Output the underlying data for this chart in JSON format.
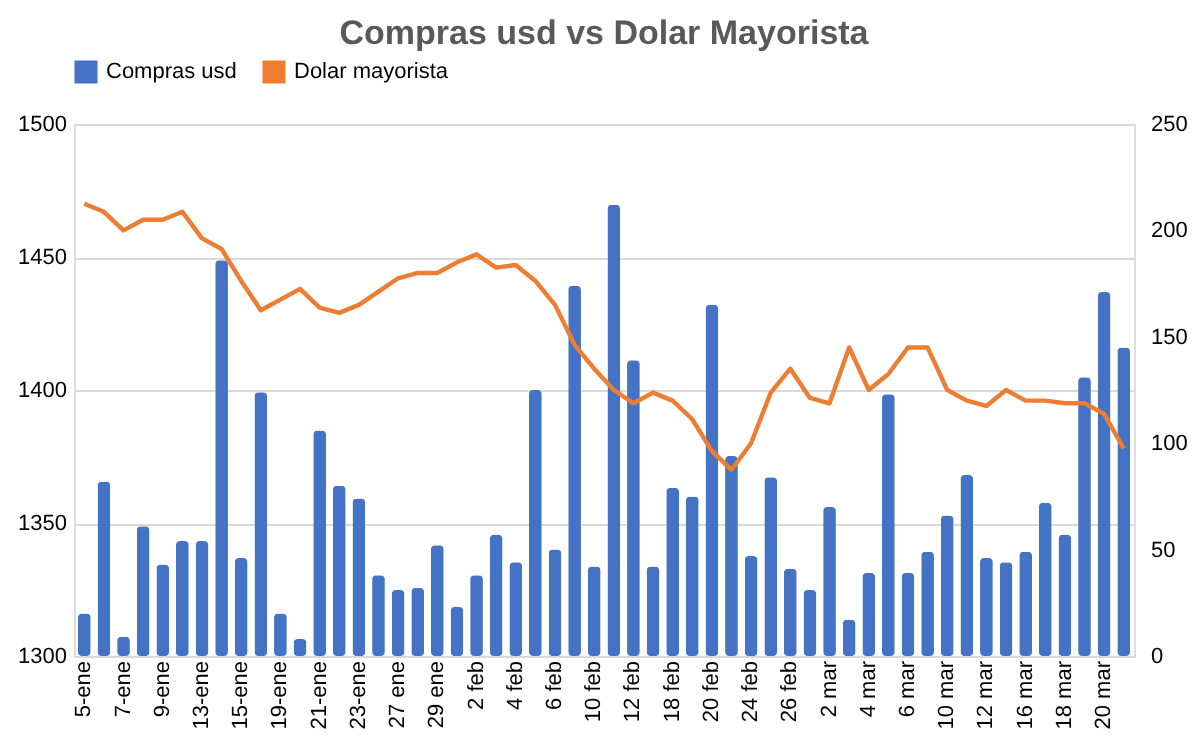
{
  "chart_data": {
    "type": "bar",
    "title": "Compras usd vs Dolar Mayorista",
    "categories": [
      "5-ene",
      null,
      "7-ene",
      null,
      "9-ene",
      null,
      "13-ene",
      null,
      "15-ene",
      null,
      "19-ene",
      null,
      "21-ene",
      null,
      "23-ene",
      null,
      "27 ene",
      null,
      "29 ene",
      null,
      "2 feb",
      null,
      "4 feb",
      null,
      "6 feb",
      null,
      "10 feb",
      null,
      "12 feb",
      null,
      "18 feb",
      null,
      "20 feb",
      null,
      "24 feb",
      null,
      "26 feb",
      null,
      "2 mar",
      null,
      "4 mar",
      null,
      "6 mar",
      null,
      "10 mar",
      null,
      "12 mar",
      null,
      "16 mar",
      null,
      "18 mar",
      null,
      "20 mar",
      null
    ],
    "series": [
      {
        "name": "Compras usd",
        "axis": "y2",
        "color": "#4472c4",
        "values": [
          20,
          82,
          9,
          61,
          43,
          54,
          54,
          186,
          46,
          124,
          20,
          8,
          106,
          80,
          74,
          38,
          31,
          32,
          52,
          23,
          38,
          57,
          44,
          125,
          50,
          174,
          42,
          212,
          139,
          42,
          79,
          75,
          165,
          94,
          47,
          84,
          41,
          31,
          70,
          17,
          39,
          123,
          39,
          49,
          66,
          85,
          46,
          44,
          49,
          72,
          57,
          131,
          171,
          145
        ]
      },
      {
        "name": "Dolar mayorista",
        "type": "line",
        "color": "#ed7d31",
        "values": [
          1470,
          1467,
          1460,
          1464,
          1464,
          1467,
          1457,
          1453,
          1441,
          1430,
          1434,
          1438,
          1431,
          1429,
          1432,
          1437,
          1442,
          1444,
          1444,
          1448,
          1451,
          1446,
          1447,
          1441,
          1432,
          1417,
          1408,
          1400,
          1395,
          1399,
          1396,
          1389,
          1377,
          1370,
          1380,
          1399,
          1408,
          1397,
          1395,
          1416,
          1400,
          1406,
          1416,
          1416,
          1400,
          1396,
          1394,
          1400,
          1396,
          1396,
          1395,
          1395,
          1391,
          1378
        ]
      }
    ],
    "ylim": [
      1300,
      1500
    ],
    "yticks": [
      1300,
      1350,
      1400,
      1450,
      1500
    ],
    "y2lim": [
      0,
      250
    ],
    "y2ticks": [
      0,
      50,
      100,
      150,
      200,
      250
    ],
    "grid": "y",
    "legend": "top",
    "line_style": "solid",
    "marker": "none"
  }
}
